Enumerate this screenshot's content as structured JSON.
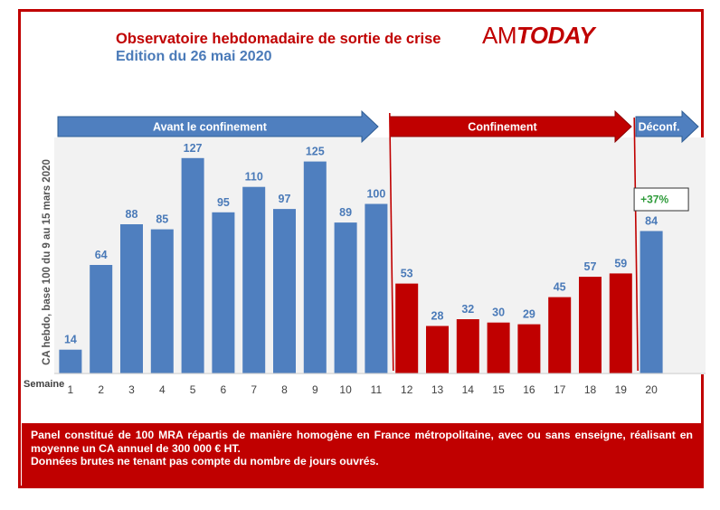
{
  "header": {
    "title": "Observatoire hebdomadaire de sortie de crise",
    "subtitle": "Edition du 26 mai 2020",
    "brand_am": "AM",
    "brand_today": "TODAY"
  },
  "colors": {
    "blue": "#4f7fbf",
    "red": "#c00000",
    "green": "#2e9b3a",
    "value_label": "#4a7ab8"
  },
  "periods": [
    {
      "label": "Avant le confinement",
      "color": "#4f7fbf",
      "from_week": 1,
      "to_week": 11
    },
    {
      "label": "Confinement",
      "color": "#c00000",
      "from_week": 12,
      "to_week": 19
    },
    {
      "label": "Déconf.",
      "color": "#4f7fbf",
      "from_week": 20,
      "to_week": 20
    }
  ],
  "chart_data": {
    "type": "bar",
    "xlabel": "Semaine",
    "ylabel": "CA hebdo, base 100 du 9 au 15 mars 2020",
    "categories": [
      "1",
      "2",
      "3",
      "4",
      "5",
      "6",
      "7",
      "8",
      "9",
      "10",
      "11",
      "12",
      "13",
      "14",
      "15",
      "16",
      "17",
      "18",
      "19",
      "20"
    ],
    "values": [
      14,
      64,
      88,
      85,
      127,
      95,
      110,
      97,
      125,
      89,
      100,
      53,
      28,
      32,
      30,
      29,
      45,
      57,
      59,
      84
    ],
    "bar_colors": [
      "#4f7fbf",
      "#4f7fbf",
      "#4f7fbf",
      "#4f7fbf",
      "#4f7fbf",
      "#4f7fbf",
      "#4f7fbf",
      "#4f7fbf",
      "#4f7fbf",
      "#4f7fbf",
      "#4f7fbf",
      "#c00000",
      "#c00000",
      "#c00000",
      "#c00000",
      "#c00000",
      "#c00000",
      "#c00000",
      "#c00000",
      "#4f7fbf"
    ],
    "ylim": [
      0,
      130
    ],
    "grid": false,
    "annotation": {
      "text": "+37%",
      "week": "20"
    }
  },
  "footer": {
    "line1": "Panel constitué de 100 MRA répartis de manière homogène en France métropolitaine, avec ou sans enseigne, réalisant en moyenne un CA annuel de 300 000 € HT.",
    "line2": "Données brutes ne tenant pas compte du nombre de jours ouvrés."
  }
}
